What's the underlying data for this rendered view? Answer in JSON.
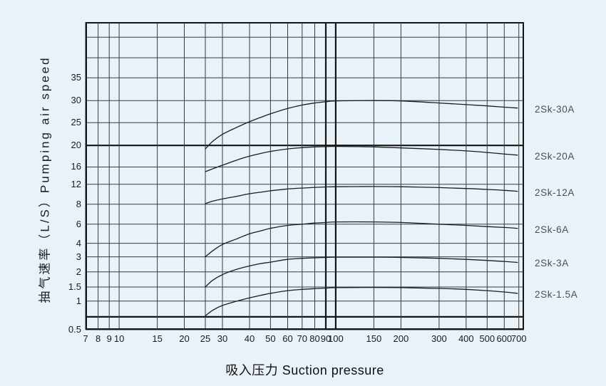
{
  "chart_data": {
    "type": "line",
    "x_axis": {
      "title": "吸入压力 Suction pressure",
      "scale": "log",
      "domain": [
        7,
        740
      ],
      "ticks": [
        {
          "v": 7,
          "label": "7"
        },
        {
          "v": 8,
          "label": "8"
        },
        {
          "v": 9,
          "label": "9"
        },
        {
          "v": 10,
          "label": "10"
        },
        {
          "v": 15,
          "label": "15"
        },
        {
          "v": 20,
          "label": "20"
        },
        {
          "v": 25,
          "label": "25"
        },
        {
          "v": 30,
          "label": "30"
        },
        {
          "v": 40,
          "label": "40"
        },
        {
          "v": 50,
          "label": "50"
        },
        {
          "v": 60,
          "label": "60"
        },
        {
          "v": 70,
          "label": "70"
        },
        {
          "v": 80,
          "label": "80"
        },
        {
          "v": 90,
          "label": "90",
          "bold": true
        },
        {
          "v": 100,
          "label": "100",
          "bold": true
        },
        {
          "v": 150,
          "label": "150"
        },
        {
          "v": 200,
          "label": "200"
        },
        {
          "v": 300,
          "label": "300"
        },
        {
          "v": 400,
          "label": "400"
        },
        {
          "v": 500,
          "label": "500"
        },
        {
          "v": 600,
          "label": "600"
        },
        {
          "v": 700,
          "label": "700"
        }
      ]
    },
    "y_axis": {
      "title": "抽气速率（L/S）Pumping air speed",
      "scale": "log-irregular",
      "gridlines": [
        {
          "f": 0.049,
          "label": ""
        },
        {
          "f": 0.116,
          "label": ""
        },
        {
          "v": 35,
          "f": 0.181,
          "label": "35"
        },
        {
          "v": 30,
          "f": 0.255,
          "label": "30"
        },
        {
          "v": 25,
          "f": 0.327,
          "label": "25"
        },
        {
          "v": 20,
          "f": 0.401,
          "label": "20",
          "bold": true
        },
        {
          "v": 16,
          "f": 0.471,
          "label": "16"
        },
        {
          "v": 12,
          "f": 0.527,
          "label": "12"
        },
        {
          "v": 8,
          "f": 0.592,
          "label": "8"
        },
        {
          "v": 6,
          "f": 0.657,
          "label": "6"
        },
        {
          "v": 4,
          "f": 0.719,
          "label": "4"
        },
        {
          "v": 3,
          "f": 0.763,
          "label": "3"
        },
        {
          "v": 2,
          "f": 0.812,
          "label": "2"
        },
        {
          "v": 1.5,
          "f": 0.861,
          "label": "1.5"
        },
        {
          "v": 1,
          "f": 0.907,
          "label": "1"
        },
        {
          "f": 0.958,
          "label": "",
          "bold": true
        },
        {
          "v": 0.5,
          "f": 1.0,
          "label": "0.5"
        }
      ]
    },
    "series": [
      {
        "name": "2Sk-30A",
        "points": [
          [
            25,
            19.3
          ],
          [
            27,
            20.8
          ],
          [
            30,
            22.3
          ],
          [
            35,
            23.9
          ],
          [
            40,
            25.2
          ],
          [
            45,
            26.1
          ],
          [
            50,
            26.9
          ],
          [
            60,
            28.1
          ],
          [
            70,
            28.9
          ],
          [
            80,
            29.4
          ],
          [
            90,
            29.7
          ],
          [
            100,
            29.9
          ],
          [
            150,
            30.0
          ],
          [
            200,
            29.9
          ],
          [
            300,
            29.4
          ],
          [
            400,
            29.0
          ],
          [
            500,
            28.7
          ],
          [
            600,
            28.4
          ],
          [
            690,
            28.2
          ]
        ]
      },
      {
        "name": "2Sk-20A",
        "points": [
          [
            25,
            14.8
          ],
          [
            27,
            15.5
          ],
          [
            30,
            16.3
          ],
          [
            35,
            17.2
          ],
          [
            40,
            17.9
          ],
          [
            45,
            18.4
          ],
          [
            50,
            18.8
          ],
          [
            60,
            19.3
          ],
          [
            70,
            19.55
          ],
          [
            80,
            19.7
          ],
          [
            90,
            19.75
          ],
          [
            100,
            19.8
          ],
          [
            150,
            19.7
          ],
          [
            200,
            19.5
          ],
          [
            300,
            19.2
          ],
          [
            400,
            18.9
          ],
          [
            500,
            18.6
          ],
          [
            600,
            18.3
          ],
          [
            690,
            18.1
          ]
        ]
      },
      {
        "name": "2Sk-12A",
        "points": [
          [
            25,
            8.1
          ],
          [
            27,
            8.5
          ],
          [
            30,
            8.9
          ],
          [
            35,
            9.4
          ],
          [
            40,
            9.9
          ],
          [
            45,
            10.2
          ],
          [
            50,
            10.5
          ],
          [
            60,
            10.9
          ],
          [
            70,
            11.1
          ],
          [
            80,
            11.25
          ],
          [
            90,
            11.35
          ],
          [
            100,
            11.4
          ],
          [
            150,
            11.45
          ],
          [
            200,
            11.4
          ],
          [
            300,
            11.2
          ],
          [
            400,
            11.0
          ],
          [
            500,
            10.8
          ],
          [
            600,
            10.6
          ],
          [
            690,
            10.4
          ]
        ]
      },
      {
        "name": "2Sk-6A",
        "points": [
          [
            25,
            3.0
          ],
          [
            27,
            3.4
          ],
          [
            30,
            3.9
          ],
          [
            35,
            4.4
          ],
          [
            40,
            4.9
          ],
          [
            45,
            5.2
          ],
          [
            50,
            5.5
          ],
          [
            60,
            5.85
          ],
          [
            70,
            6.0
          ],
          [
            80,
            6.1
          ],
          [
            90,
            6.15
          ],
          [
            100,
            6.2
          ],
          [
            150,
            6.2
          ],
          [
            200,
            6.15
          ],
          [
            300,
            6.0
          ],
          [
            400,
            5.85
          ],
          [
            500,
            5.7
          ],
          [
            600,
            5.6
          ],
          [
            690,
            5.5
          ]
        ]
      },
      {
        "name": "2Sk-3A",
        "points": [
          [
            25,
            1.5
          ],
          [
            27,
            1.7
          ],
          [
            30,
            1.9
          ],
          [
            35,
            2.15
          ],
          [
            40,
            2.35
          ],
          [
            45,
            2.5
          ],
          [
            50,
            2.6
          ],
          [
            60,
            2.8
          ],
          [
            70,
            2.88
          ],
          [
            80,
            2.92
          ],
          [
            90,
            2.95
          ],
          [
            100,
            2.97
          ],
          [
            150,
            2.97
          ],
          [
            200,
            2.95
          ],
          [
            300,
            2.88
          ],
          [
            400,
            2.8
          ],
          [
            500,
            2.72
          ],
          [
            600,
            2.65
          ],
          [
            690,
            2.58
          ]
        ]
      },
      {
        "name": "2Sk-1.5A",
        "points": [
          [
            25,
            0.7
          ],
          [
            27,
            0.8
          ],
          [
            30,
            0.9
          ],
          [
            35,
            1.0
          ],
          [
            40,
            1.1
          ],
          [
            45,
            1.18
          ],
          [
            50,
            1.25
          ],
          [
            60,
            1.35
          ],
          [
            70,
            1.4
          ],
          [
            80,
            1.43
          ],
          [
            90,
            1.45
          ],
          [
            100,
            1.47
          ],
          [
            150,
            1.48
          ],
          [
            200,
            1.47
          ],
          [
            300,
            1.44
          ],
          [
            400,
            1.4
          ],
          [
            500,
            1.35
          ],
          [
            600,
            1.3
          ],
          [
            690,
            1.25
          ]
        ]
      }
    ],
    "colors": {
      "background": "#e9f2f9",
      "grid": "#3a3a3a",
      "grid_bold": "#141414",
      "border": "#141414",
      "curve": "#1c1c1c",
      "text": "#1b1b1b",
      "series_label": "#4e4e4e"
    }
  }
}
